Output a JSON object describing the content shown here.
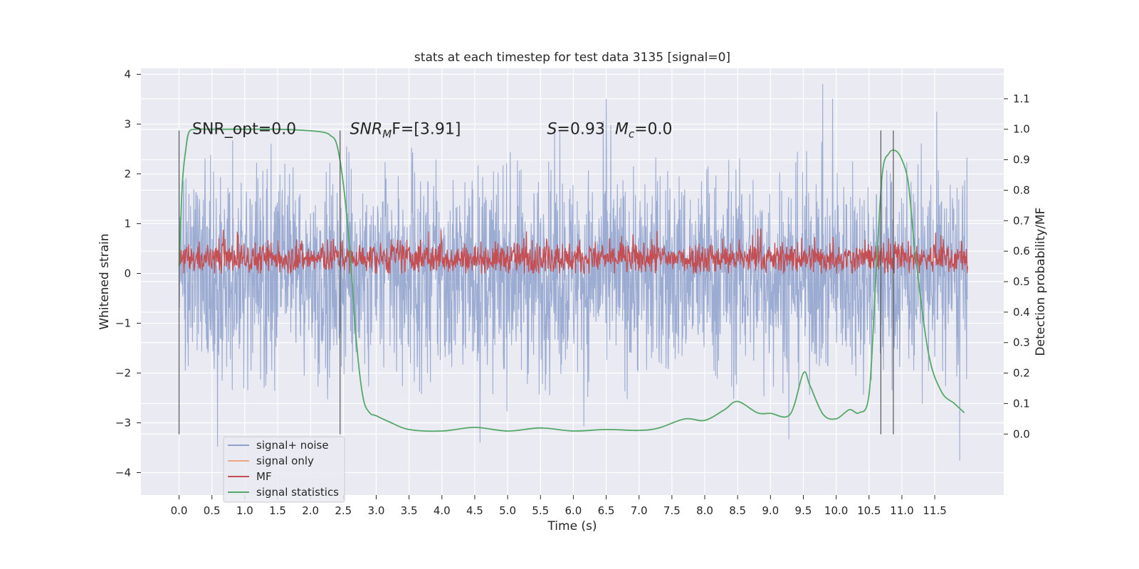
{
  "chart_data": {
    "type": "line",
    "title": "stats at each timestep for test data 3135 [signal=0]",
    "xlabel": "Time (s)",
    "ylabel_left": "Whitened strain",
    "ylabel_right": "Detection probability/MF",
    "xlim": [
      -0.58,
      12.55
    ],
    "ylim_left": [
      -4.45,
      4.12
    ],
    "ylim_right": [
      -0.2,
      1.2
    ],
    "x_ticks": [
      "0.0",
      "0.5",
      "1.0",
      "1.5",
      "2.0",
      "2.5",
      "3.0",
      "3.5",
      "4.0",
      "4.5",
      "5.0",
      "5.5",
      "6.0",
      "6.5",
      "7.0",
      "7.5",
      "8.0",
      "8.5",
      "9.0",
      "9.5",
      "10.0",
      "10.5",
      "11.0",
      "11.5"
    ],
    "y_left_ticks": [
      "4",
      "3",
      "2",
      "1",
      "0",
      "−1",
      "−2",
      "−3",
      "−4"
    ],
    "y_right_ticks": [
      "1.1",
      "1.0",
      "0.9",
      "0.8",
      "0.7",
      "0.6",
      "0.5",
      "0.4",
      "0.3",
      "0.2",
      "0.1",
      "0.0"
    ],
    "grid": true,
    "legend_position": "lower-left",
    "annotations": {
      "snr_opt": "SNR_opt=0.0",
      "snr_mf": "SNR",
      "snr_mf_sub": "M",
      "snr_mf_tail": "F=[3.91]",
      "s_label": "S",
      "s_value": "=0.93",
      "mc_label": "M",
      "mc_sub": "c",
      "mc_value": "=0.0"
    },
    "series": [
      {
        "name": "signal+ noise",
        "color": "#8da0cb",
        "axis": "left",
        "x_range": [
          0.0,
          12.0
        ],
        "typical_range": [
          -2.2,
          2.2
        ],
        "extreme_range": [
          -4.1,
          3.8
        ]
      },
      {
        "name": "signal only",
        "color": "#e8a685",
        "axis": "left",
        "values": [
          0.0
        ]
      },
      {
        "name": "MF",
        "color": "#c44e52",
        "axis": "left",
        "x_range": [
          0.0,
          12.0
        ],
        "typical_range": [
          0.0,
          0.9
        ]
      },
      {
        "name": "signal statistics",
        "color": "#55a868",
        "axis": "right",
        "x": [
          0.0,
          0.05,
          0.1,
          0.15,
          0.25,
          0.5,
          1.0,
          1.5,
          2.0,
          2.2,
          2.3,
          2.4,
          2.5,
          2.6,
          2.7,
          2.8,
          2.9,
          3.0,
          3.2,
          3.5,
          4.0,
          4.5,
          5.0,
          5.5,
          6.0,
          6.5,
          7.0,
          7.3,
          7.7,
          8.0,
          8.3,
          8.5,
          8.8,
          9.0,
          9.3,
          9.5,
          9.6,
          9.8,
          10.0,
          10.2,
          10.35,
          10.5,
          10.6,
          10.7,
          10.8,
          10.9,
          11.0,
          11.1,
          11.2,
          11.4,
          11.6,
          11.8,
          11.95
        ],
        "values": [
          0.55,
          0.82,
          0.93,
          0.99,
          1.0,
          1.0,
          1.0,
          1.0,
          0.995,
          0.99,
          0.98,
          0.95,
          0.82,
          0.6,
          0.3,
          0.12,
          0.07,
          0.06,
          0.04,
          0.015,
          0.01,
          0.022,
          0.01,
          0.02,
          0.01,
          0.015,
          0.012,
          0.02,
          0.05,
          0.045,
          0.08,
          0.107,
          0.07,
          0.068,
          0.065,
          0.2,
          0.16,
          0.065,
          0.05,
          0.08,
          0.07,
          0.13,
          0.5,
          0.85,
          0.92,
          0.93,
          0.9,
          0.82,
          0.6,
          0.27,
          0.14,
          0.1,
          0.07
        ]
      }
    ],
    "vertical_markers": [
      0.0,
      2.45,
      10.68,
      10.87
    ],
    "vertical_marker_range": [
      -3.23,
      2.87
    ]
  }
}
